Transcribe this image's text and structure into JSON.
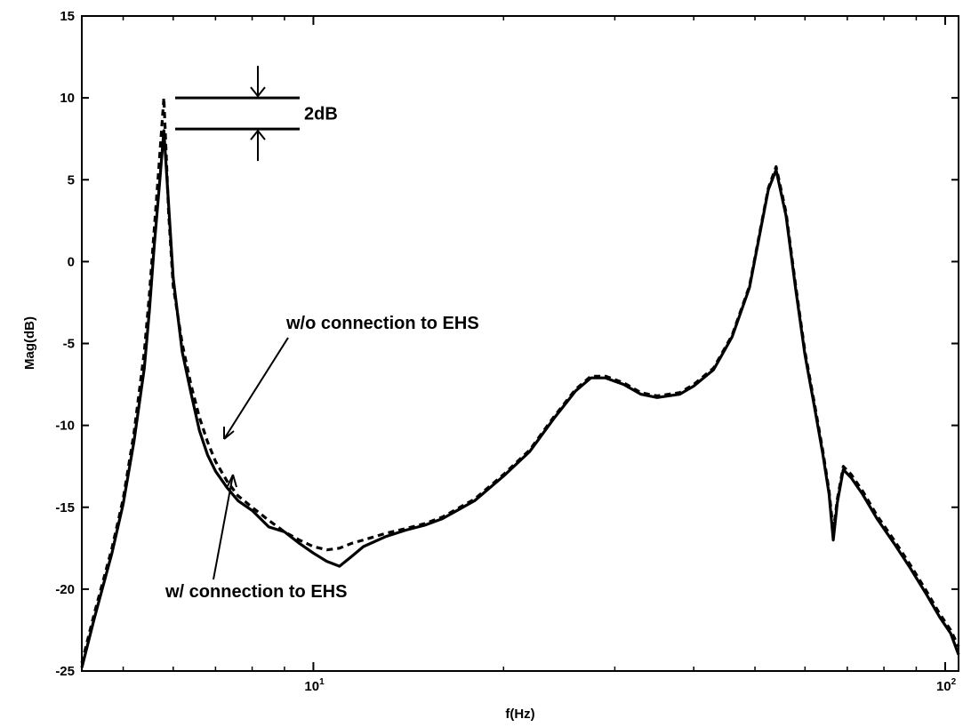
{
  "chart_data": {
    "type": "line",
    "title": "",
    "xlabel": "f(Hz)",
    "ylabel": "Mag(dB)",
    "xscale": "log",
    "xlim": [
      4.3,
      105
    ],
    "ylim": [
      -25,
      15
    ],
    "grid": false,
    "y_ticks": [
      15,
      10,
      5,
      0,
      -5,
      -10,
      -15,
      -20,
      -25
    ],
    "x_ticks": [
      {
        "value": 10,
        "base": "10",
        "exp": "1"
      },
      {
        "value": 100,
        "base": "10",
        "exp": "2"
      }
    ],
    "series": [
      {
        "name": "w/o connection to EHS",
        "style": "dashed",
        "x": [
          4.3,
          4.5,
          4.8,
          5.0,
          5.2,
          5.4,
          5.5,
          5.6,
          5.7,
          5.8,
          5.9,
          6.0,
          6.2,
          6.4,
          6.6,
          6.8,
          7.0,
          7.3,
          7.6,
          8.0,
          8.5,
          9.0,
          9.5,
          10.0,
          10.5,
          11.0,
          11.5,
          12.0,
          13.0,
          14.0,
          15.0,
          16.0,
          18.0,
          20.0,
          22.0,
          24.0,
          26.0,
          27.5,
          29.0,
          31.0,
          33.0,
          35.0,
          38.0,
          40.0,
          43.0,
          46.0,
          49.0,
          51.0,
          52.5,
          54.0,
          56.0,
          58.0,
          60.0,
          62.0,
          64.0,
          65.5,
          66.5,
          67.5,
          69.0,
          71.0,
          74.0,
          78.0,
          83.0,
          88.0,
          93.0,
          98.0,
          102.0,
          105.0
        ],
        "y": [
          -24.5,
          -21.5,
          -17.5,
          -14.5,
          -10.5,
          -5.5,
          -2.0,
          2.0,
          6.0,
          10.0,
          3.0,
          -1.5,
          -5.0,
          -7.5,
          -9.5,
          -11.0,
          -12.2,
          -13.4,
          -14.3,
          -15.0,
          -15.8,
          -16.5,
          -17.0,
          -17.4,
          -17.6,
          -17.5,
          -17.2,
          -17.0,
          -16.6,
          -16.3,
          -16.0,
          -15.6,
          -14.5,
          -13.0,
          -11.5,
          -9.5,
          -7.8,
          -7.0,
          -7.0,
          -7.4,
          -8.0,
          -8.2,
          -8.0,
          -7.5,
          -6.5,
          -4.5,
          -1.5,
          2.0,
          4.5,
          5.8,
          3.0,
          -1.5,
          -5.5,
          -8.5,
          -11.5,
          -14.0,
          -16.5,
          -14.5,
          -12.5,
          -13.0,
          -14.0,
          -15.5,
          -17.0,
          -18.5,
          -20.0,
          -21.5,
          -22.5,
          -23.5
        ]
      },
      {
        "name": "w/ connection to EHS",
        "style": "solid",
        "x": [
          4.3,
          4.5,
          4.8,
          5.0,
          5.2,
          5.4,
          5.5,
          5.6,
          5.7,
          5.8,
          5.9,
          6.0,
          6.2,
          6.4,
          6.6,
          6.8,
          7.0,
          7.3,
          7.6,
          8.0,
          8.5,
          9.0,
          9.5,
          10.0,
          10.5,
          11.0,
          11.5,
          12.0,
          13.0,
          14.0,
          15.0,
          16.0,
          18.0,
          20.0,
          22.0,
          24.0,
          26.0,
          27.5,
          29.0,
          31.0,
          33.0,
          35.0,
          38.0,
          40.0,
          43.0,
          46.0,
          49.0,
          51.0,
          52.5,
          54.0,
          56.0,
          58.0,
          60.0,
          62.0,
          64.0,
          65.5,
          66.5,
          67.5,
          69.0,
          71.0,
          74.0,
          78.0,
          83.0,
          88.0,
          93.0,
          98.0,
          102.0,
          105.0
        ],
        "y": [
          -24.8,
          -21.8,
          -17.8,
          -14.8,
          -11.0,
          -6.5,
          -3.0,
          1.0,
          4.5,
          8.0,
          3.5,
          -1.0,
          -5.5,
          -8.0,
          -10.3,
          -11.8,
          -12.8,
          -13.8,
          -14.6,
          -15.2,
          -16.2,
          -16.5,
          -17.2,
          -17.8,
          -18.3,
          -18.6,
          -18.0,
          -17.4,
          -16.8,
          -16.4,
          -16.1,
          -15.7,
          -14.6,
          -13.1,
          -11.6,
          -9.6,
          -7.9,
          -7.1,
          -7.1,
          -7.5,
          -8.1,
          -8.3,
          -8.1,
          -7.6,
          -6.6,
          -4.6,
          -1.6,
          1.9,
          4.4,
          5.6,
          2.8,
          -1.7,
          -5.7,
          -8.7,
          -11.7,
          -14.2,
          -17.0,
          -14.7,
          -12.7,
          -13.2,
          -14.2,
          -15.7,
          -17.2,
          -18.7,
          -20.2,
          -21.7,
          -22.7,
          -24.0
        ]
      }
    ],
    "annotations": {
      "gap_label": "2dB",
      "gap_levels": [
        10,
        8.1
      ],
      "label_without": "w/o connection to EHS",
      "label_with": "w/ connection to EHS"
    }
  }
}
